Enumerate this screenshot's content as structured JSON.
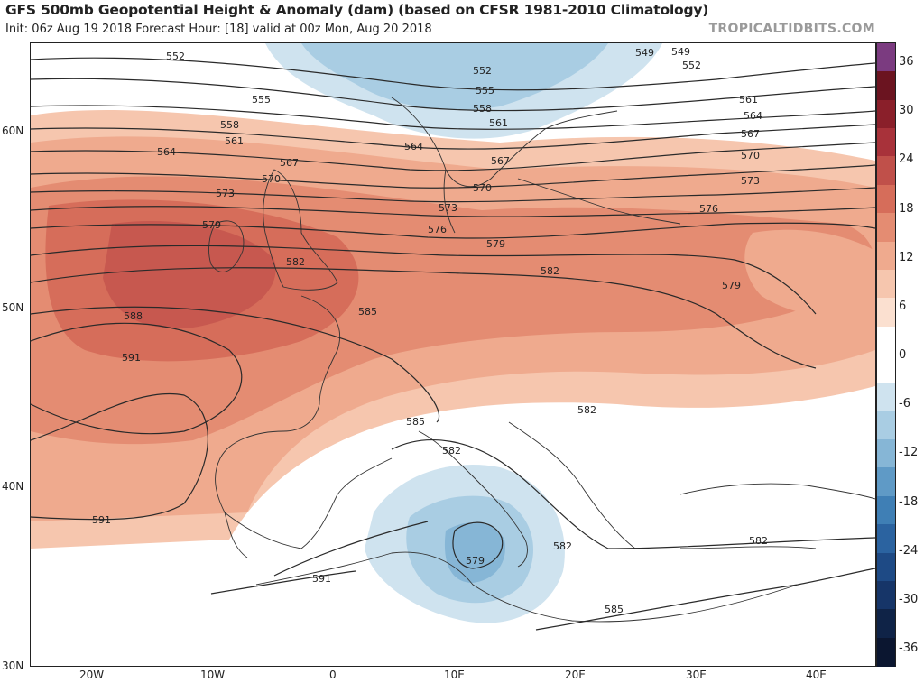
{
  "header": {
    "title": "GFS 500mb Geopotential Height & Anomaly (dam) (based on CFSR 1981-2010 Climatology)",
    "subtitle": "Init: 06z Aug 19 2018   Forecast Hour: [18]   valid at 00z Mon, Aug 20 2018",
    "brand": "TROPICALTIDBITS.COM"
  },
  "axes": {
    "lat_labels": [
      "60N",
      "50N",
      "40N",
      "30N"
    ],
    "lon_labels": [
      "20W",
      "10W",
      "0",
      "10E",
      "20E",
      "30E",
      "40E"
    ]
  },
  "colorbar": {
    "labels": [
      "36",
      "30",
      "24",
      "18",
      "12",
      "6",
      "0",
      "-6",
      "-12",
      "-18",
      "-24",
      "-30",
      "-36"
    ],
    "colors": [
      "#7b3b80",
      "#6b1420",
      "#8a1f2a",
      "#a8323a",
      "#c0504a",
      "#d66d5a",
      "#e48c72",
      "#efaa8e",
      "#f6c6ae",
      "#fbe0d0",
      "#ffffff",
      "#ffffff",
      "#cfe3ef",
      "#a9cde3",
      "#86b6d6",
      "#5f9ac6",
      "#3f7fb5",
      "#2b63a0",
      "#1e4a85",
      "#163568",
      "#0f2347",
      "#0b1630"
    ]
  },
  "contour_labels": [
    {
      "text": "552"
    },
    {
      "text": "555"
    },
    {
      "text": "558"
    },
    {
      "text": "561"
    },
    {
      "text": "564"
    },
    {
      "text": "567"
    },
    {
      "text": "570"
    },
    {
      "text": "573"
    },
    {
      "text": "579"
    },
    {
      "text": "582"
    },
    {
      "text": "585"
    },
    {
      "text": "588"
    },
    {
      "text": "591"
    },
    {
      "text": "591"
    },
    {
      "text": "591"
    },
    {
      "text": "549"
    },
    {
      "text": "552"
    },
    {
      "text": "555"
    },
    {
      "text": "558"
    },
    {
      "text": "561"
    },
    {
      "text": "564"
    },
    {
      "text": "567"
    },
    {
      "text": "570"
    },
    {
      "text": "573"
    },
    {
      "text": "576"
    },
    {
      "text": "579"
    },
    {
      "text": "582"
    },
    {
      "text": "585"
    },
    {
      "text": "582"
    },
    {
      "text": "579"
    },
    {
      "text": "582"
    },
    {
      "text": "582"
    },
    {
      "text": "585"
    },
    {
      "text": "561"
    },
    {
      "text": "564"
    },
    {
      "text": "567"
    },
    {
      "text": "570"
    },
    {
      "text": "573"
    },
    {
      "text": "576"
    },
    {
      "text": "579"
    },
    {
      "text": "582"
    },
    {
      "text": "552"
    },
    {
      "text": "549"
    }
  ]
}
